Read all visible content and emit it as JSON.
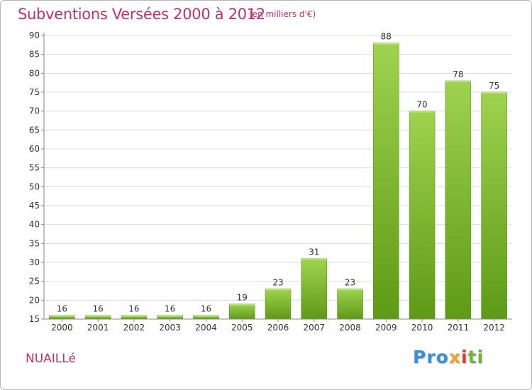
{
  "title": "Subventions Versées 2000 à 2012",
  "subtitle": "(en milliers d'€)",
  "place": "NUAILLé",
  "logo": {
    "text": "Proxiti",
    "parts": [
      "Pro",
      "x",
      "i",
      "ti"
    ]
  },
  "colors": {
    "title": "#c0306a",
    "bar_top": "#9fd24f",
    "bar_bottom": "#5e9a16",
    "grid": "#dcdcdc",
    "axis": "#888888"
  },
  "chart_data": {
    "type": "bar",
    "categories": [
      "2000",
      "2001",
      "2002",
      "2003",
      "2004",
      "2005",
      "2006",
      "2007",
      "2008",
      "2009",
      "2010",
      "2011",
      "2012"
    ],
    "values": [
      16,
      16,
      16,
      16,
      16,
      19,
      23,
      31,
      23,
      88,
      70,
      78,
      75
    ],
    "ylim": [
      15,
      90
    ],
    "yticks": [
      15,
      20,
      25,
      30,
      35,
      40,
      45,
      50,
      55,
      60,
      65,
      70,
      75,
      80,
      85,
      90
    ],
    "grid": true
  }
}
